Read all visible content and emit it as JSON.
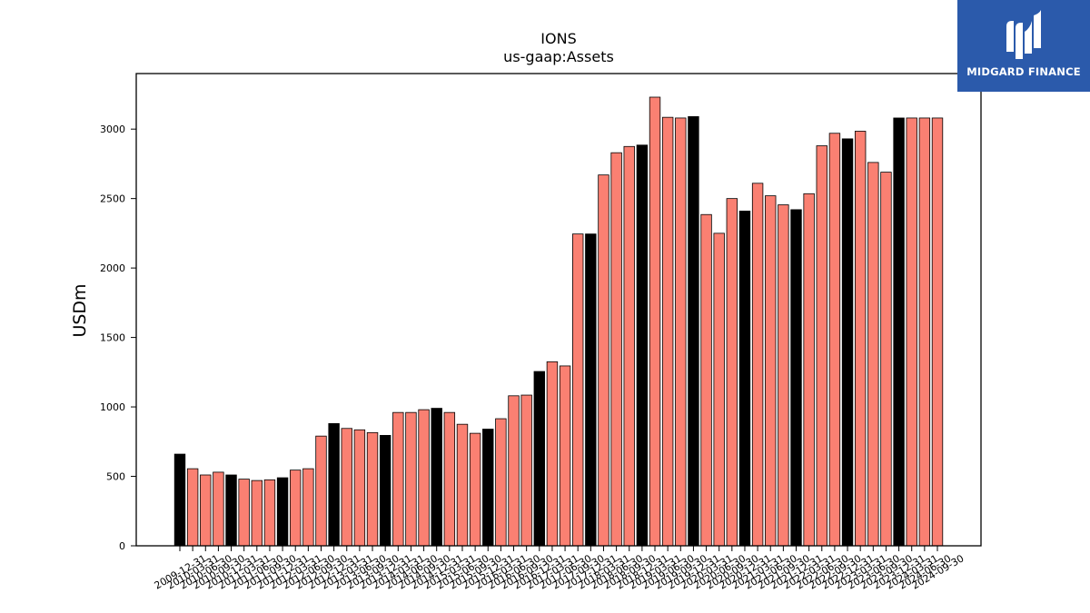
{
  "chart_data": {
    "type": "bar",
    "title": "IONS",
    "subtitle": "us-gaap:Assets",
    "ylabel": "USDm",
    "xlabel": "",
    "ylim": [
      0,
      3400
    ],
    "yticks": [
      0,
      500,
      1000,
      1500,
      2000,
      2500,
      3000
    ],
    "grid": false,
    "legend": "none",
    "colors": {
      "annual": "#000000",
      "quarterly": "#fa8072",
      "edge": "#000000"
    },
    "categories": [
      "2009-12-31",
      "2010-03-31",
      "2010-06-30",
      "2010-09-30",
      "2010-12-31",
      "2011-03-31",
      "2011-06-30",
      "2011-09-30",
      "2011-12-31",
      "2012-03-31",
      "2012-06-30",
      "2012-09-30",
      "2012-12-31",
      "2013-03-31",
      "2013-06-30",
      "2013-09-30",
      "2013-12-31",
      "2014-03-31",
      "2014-06-30",
      "2014-09-30",
      "2014-12-31",
      "2015-03-31",
      "2015-06-30",
      "2015-09-30",
      "2015-12-31",
      "2016-03-31",
      "2016-06-30",
      "2016-09-30",
      "2016-12-31",
      "2017-03-31",
      "2017-06-30",
      "2017-09-30",
      "2017-12-31",
      "2018-03-31",
      "2018-06-30",
      "2018-09-30",
      "2018-12-31",
      "2019-03-31",
      "2019-06-30",
      "2019-09-30",
      "2019-12-31",
      "2020-03-31",
      "2020-06-30",
      "2020-09-30",
      "2020-12-31",
      "2021-03-31",
      "2021-06-30",
      "2021-09-30",
      "2021-12-31",
      "2022-03-31",
      "2022-06-30",
      "2022-09-30",
      "2022-12-31",
      "2023-03-31",
      "2023-06-30",
      "2023-09-30",
      "2023-12-31",
      "2024-03-31",
      "2024-06-30",
      "2024-09-30"
    ],
    "values": [
      660,
      555,
      510,
      530,
      510,
      480,
      470,
      475,
      490,
      545,
      555,
      790,
      880,
      845,
      835,
      815,
      795,
      960,
      960,
      980,
      990,
      960,
      875,
      810,
      840,
      915,
      1080,
      1085,
      1255,
      1325,
      1295,
      2245,
      2245,
      2670,
      2830,
      2875,
      2885,
      3230,
      3085,
      3080,
      3090,
      2385,
      2250,
      2500,
      2410,
      2610,
      2520,
      2455,
      2420,
      2535,
      2880,
      2970,
      2930,
      2985,
      2760,
      2690,
      3080,
      3080,
      3080,
      3080
    ],
    "period_type": [
      "annual",
      "quarterly",
      "quarterly",
      "quarterly",
      "annual",
      "quarterly",
      "quarterly",
      "quarterly",
      "annual",
      "quarterly",
      "quarterly",
      "quarterly",
      "annual",
      "quarterly",
      "quarterly",
      "quarterly",
      "annual",
      "quarterly",
      "quarterly",
      "quarterly",
      "annual",
      "quarterly",
      "quarterly",
      "quarterly",
      "annual",
      "quarterly",
      "quarterly",
      "quarterly",
      "annual",
      "quarterly",
      "quarterly",
      "quarterly",
      "annual",
      "quarterly",
      "quarterly",
      "quarterly",
      "annual",
      "quarterly",
      "quarterly",
      "quarterly",
      "annual",
      "quarterly",
      "quarterly",
      "quarterly",
      "annual",
      "quarterly",
      "quarterly",
      "quarterly",
      "annual",
      "quarterly",
      "quarterly",
      "quarterly",
      "annual",
      "quarterly",
      "quarterly",
      "quarterly",
      "annual",
      "quarterly",
      "quarterly",
      "quarterly"
    ]
  },
  "logo": {
    "text": "MIDGARD FINANCE"
  }
}
